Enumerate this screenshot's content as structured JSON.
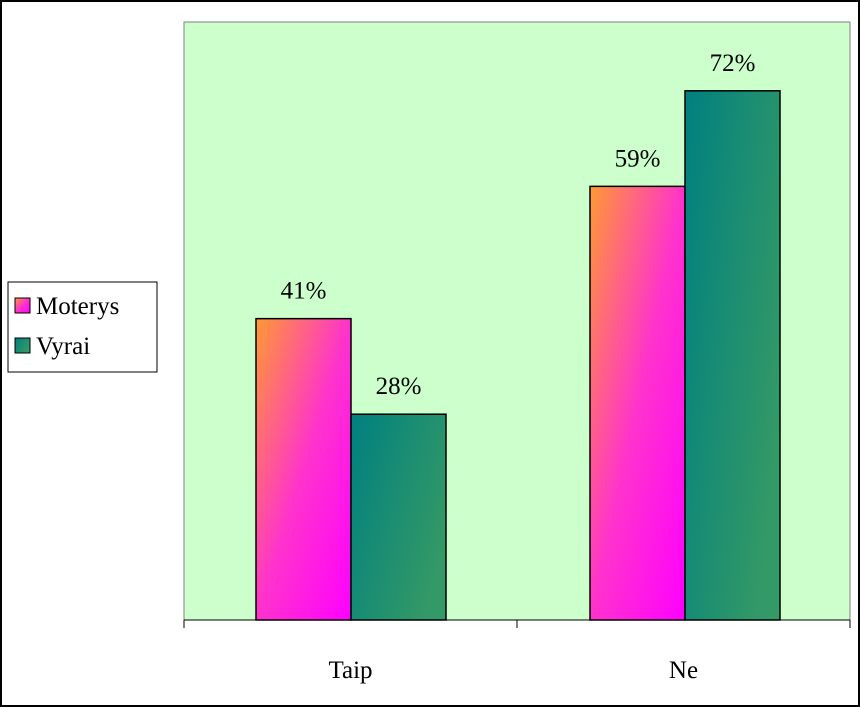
{
  "chart_data": {
    "type": "bar",
    "title": "",
    "xlabel": "",
    "ylabel": "",
    "categories": [
      "Taip",
      "Ne"
    ],
    "series": [
      {
        "name": "Moterys",
        "values": [
          41,
          59
        ],
        "labels": [
          "41%",
          "59%"
        ],
        "colors": [
          "#ff9933",
          "#ff33cc",
          "#ff00ff"
        ]
      },
      {
        "name": "Vyrai",
        "values": [
          28,
          72
        ],
        "labels": [
          "28%",
          "72%"
        ],
        "colors": [
          "#008080",
          "#339966"
        ]
      }
    ],
    "ylim": [
      0,
      80
    ],
    "grid": false,
    "legend_position": "left",
    "background_color": "#ccffcc"
  }
}
